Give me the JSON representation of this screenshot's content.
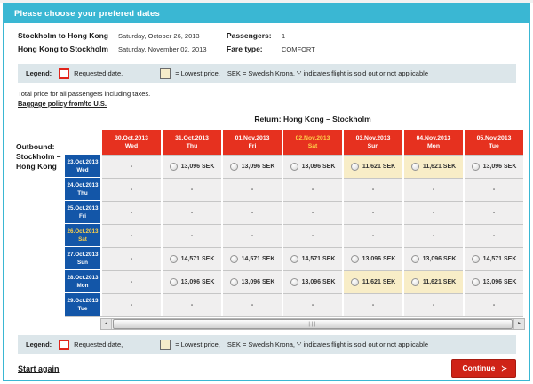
{
  "page": {
    "title": "Please choose your prefered dates"
  },
  "trip_summary": {
    "outbound_route": "Stockholm to Hong Kong",
    "outbound_date": "Saturday, October 26, 2013",
    "return_route": "Hong Kong to Stockholm",
    "return_date": "Saturday, November 02, 2013",
    "passengers_label": "Passengers:",
    "passengers_value": "1",
    "fare_type_label": "Fare type:",
    "fare_type_value": "COMFORT"
  },
  "legend": {
    "label": "Legend:",
    "requested_date_text": "Requested date,",
    "lowest_price_text": "= Lowest price,",
    "sek_text": "SEK  = Swedish Krona, '-' indicates flight is sold out or not applicable"
  },
  "notes": {
    "total_price": "Total price for all passengers including taxes.",
    "baggage_link": "Baggage policy from/to U.S."
  },
  "matrix": {
    "return_header": "Return: Hong Kong – Stockholm",
    "outbound_label_lines": [
      "Outbound:",
      "Stockholm –",
      "Hong Kong"
    ],
    "empty_cell_text": "-",
    "columns": [
      {
        "date": "30.Oct.2013",
        "day": "Wed",
        "requested": false
      },
      {
        "date": "31.Oct.2013",
        "day": "Thu",
        "requested": false
      },
      {
        "date": "01.Nov.2013",
        "day": "Fri",
        "requested": false
      },
      {
        "date": "02.Nov.2013",
        "day": "Sat",
        "requested": true
      },
      {
        "date": "03.Nov.2013",
        "day": "Sun",
        "requested": false
      },
      {
        "date": "04.Nov.2013",
        "day": "Mon",
        "requested": false
      },
      {
        "date": "05.Nov.2013",
        "day": "Tue",
        "requested": false
      }
    ],
    "rows": [
      {
        "date": "23.Oct.2013",
        "day": "Wed",
        "requested": false,
        "cells": [
          {
            "price": null
          },
          {
            "price": "13,096 SEK"
          },
          {
            "price": "13,096 SEK"
          },
          {
            "price": "13,096 SEK"
          },
          {
            "price": "11,621 SEK",
            "lowest": true
          },
          {
            "price": "11,621 SEK",
            "lowest": true
          },
          {
            "price": "13,096 SEK"
          }
        ]
      },
      {
        "date": "24.Oct.2013",
        "day": "Thu",
        "requested": false,
        "cells": [
          {
            "price": null
          },
          {
            "price": null
          },
          {
            "price": null
          },
          {
            "price": null
          },
          {
            "price": null
          },
          {
            "price": null
          },
          {
            "price": null
          }
        ]
      },
      {
        "date": "25.Oct.2013",
        "day": "Fri",
        "requested": false,
        "cells": [
          {
            "price": null
          },
          {
            "price": null
          },
          {
            "price": null
          },
          {
            "price": null
          },
          {
            "price": null
          },
          {
            "price": null
          },
          {
            "price": null
          }
        ]
      },
      {
        "date": "26.Oct.2013",
        "day": "Sat",
        "requested": true,
        "cells": [
          {
            "price": null
          },
          {
            "price": null
          },
          {
            "price": null
          },
          {
            "price": null
          },
          {
            "price": null
          },
          {
            "price": null
          },
          {
            "price": null
          }
        ]
      },
      {
        "date": "27.Oct.2013",
        "day": "Sun",
        "requested": false,
        "cells": [
          {
            "price": null
          },
          {
            "price": "14,571 SEK"
          },
          {
            "price": "14,571 SEK"
          },
          {
            "price": "14,571 SEK"
          },
          {
            "price": "13,096 SEK"
          },
          {
            "price": "13,096 SEK"
          },
          {
            "price": "14,571 SEK"
          }
        ]
      },
      {
        "date": "28.Oct.2013",
        "day": "Mon",
        "requested": false,
        "cells": [
          {
            "price": null
          },
          {
            "price": "13,096 SEK"
          },
          {
            "price": "13,096 SEK"
          },
          {
            "price": "13,096 SEK"
          },
          {
            "price": "11,621 SEK",
            "lowest": true
          },
          {
            "price": "11,621 SEK",
            "lowest": true
          },
          {
            "price": "13,096 SEK"
          }
        ]
      },
      {
        "date": "29.Oct.2013",
        "day": "Tue",
        "requested": false,
        "cells": [
          {
            "price": null
          },
          {
            "price": null
          },
          {
            "price": null
          },
          {
            "price": null
          },
          {
            "price": null
          },
          {
            "price": null
          },
          {
            "price": null
          }
        ]
      }
    ]
  },
  "scrollbar": {
    "grip": "|||",
    "left_arrow": "◂",
    "right_arrow": "▸"
  },
  "footer": {
    "start_again_label": "Start again",
    "continue_label": "Continue",
    "continue_arrow": "≻"
  },
  "colors": {
    "accent_cyan": "#3ab7d3",
    "header_red": "#e6311f",
    "row_header_blue": "#1356a8",
    "requested_yellow": "#ffd24a",
    "lowest_price_beige": "#f8edc7",
    "legend_bg": "#dce6ea",
    "continue_red": "#cf2317",
    "requested_swatch_border": "#e0241b"
  }
}
